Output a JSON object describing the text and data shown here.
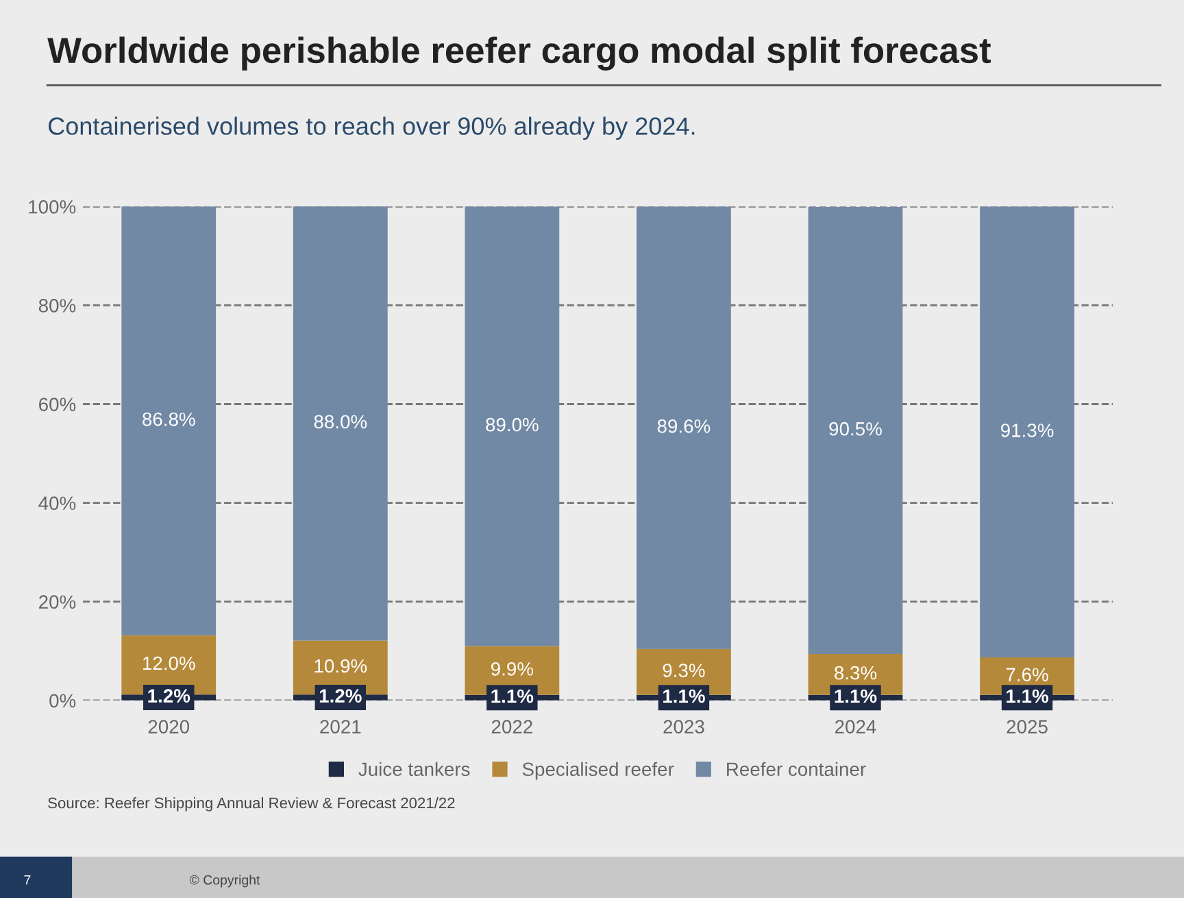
{
  "chart_data": {
    "type": "bar",
    "title": "Worldwide perishable reefer cargo modal split forecast",
    "subtitle": "Containerised volumes to reach over 90% already by 2024.",
    "categories": [
      "2020",
      "2021",
      "2022",
      "2023",
      "2024",
      "2025"
    ],
    "stacked": true,
    "series": [
      {
        "name": "Juice tankers",
        "color": "#1f2a44",
        "values": [
          1.2,
          1.2,
          1.1,
          1.1,
          1.1,
          1.1
        ],
        "value_labels": [
          "1.2%",
          "1.2%",
          "1.1%",
          "1.1%",
          "1.1%",
          "1.1%"
        ]
      },
      {
        "name": "Specialised reefer",
        "color": "#b5893a",
        "values": [
          12.0,
          10.9,
          9.9,
          9.3,
          8.3,
          7.6
        ],
        "value_labels": [
          "12.0%",
          "10.9%",
          "9.9%",
          "9.3%",
          "8.3%",
          "7.6%"
        ]
      },
      {
        "name": "Reefer container",
        "color": "#7189a5",
        "values": [
          86.8,
          88.0,
          89.0,
          89.6,
          90.5,
          91.3
        ],
        "value_labels": [
          "86.8%",
          "88.0%",
          "89.0%",
          "89.6%",
          "90.5%",
          "91.3%"
        ]
      }
    ],
    "ylim": [
      0,
      100
    ],
    "yticks": [
      {
        "value": 0,
        "label": "0%"
      },
      {
        "value": 20,
        "label": "20%"
      },
      {
        "value": 40,
        "label": "40%"
      },
      {
        "value": 60,
        "label": "60%"
      },
      {
        "value": 80,
        "label": "80%"
      },
      {
        "value": 100,
        "label": "100%"
      }
    ],
    "grid": "y",
    "legend": "bottom",
    "annotations": [
      "Source: Reefer Shipping Annual Review & Forecast 2021/22",
      "7",
      "© Copyright"
    ]
  }
}
